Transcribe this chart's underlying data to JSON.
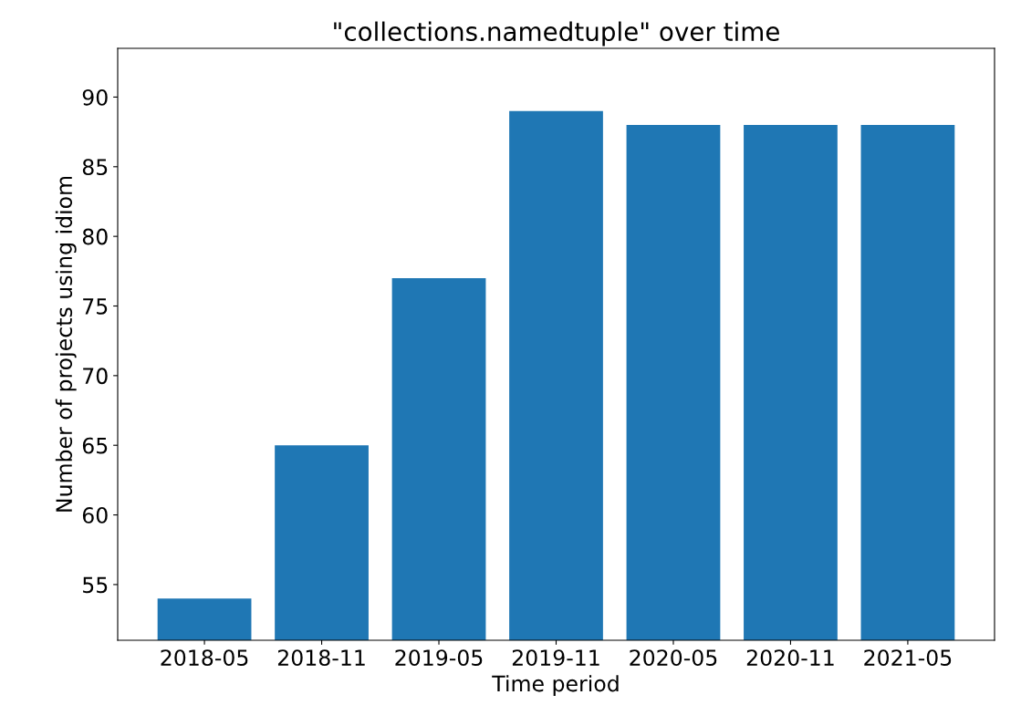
{
  "chart_data": {
    "type": "bar",
    "title": "\"collections.namedtuple\" over time",
    "xlabel": "Time period",
    "ylabel": "Number of projects using idiom",
    "categories": [
      "2018-05",
      "2018-11",
      "2019-05",
      "2019-11",
      "2020-05",
      "2020-11",
      "2021-05"
    ],
    "values": [
      54,
      65,
      77,
      89,
      88,
      88,
      88
    ],
    "color": "#1f77b4",
    "ylim": [
      51,
      93.5
    ],
    "yticks": [
      55,
      60,
      65,
      70,
      75,
      80,
      85,
      90
    ],
    "grid": false,
    "legend": false
  }
}
